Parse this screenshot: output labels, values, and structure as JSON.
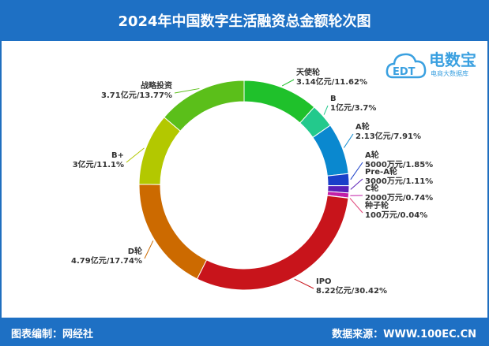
{
  "header": {
    "title": "2024年中国数字生活融资总金额轮次图"
  },
  "footer": {
    "left": "图表编制：网经社",
    "right": "数据来源：WWW.100EC.CN"
  },
  "logo": {
    "brand": "电数宝",
    "sub": "电商大数据库",
    "mark": "EDT"
  },
  "colors": {
    "header": "#1e70c4"
  },
  "chart_data": {
    "type": "pie",
    "title": "2024年中国数字生活融资总金额轮次图",
    "donut": true,
    "slices": [
      {
        "name": "天使轮",
        "amount": "3.14亿元",
        "percent": 11.62,
        "label2": "3.14亿元/11.62%",
        "color": "#1fc12b"
      },
      {
        "name": "B",
        "amount": "1亿元",
        "percent": 3.7,
        "label2": "1亿元/3.7%",
        "color": "#23c98c"
      },
      {
        "name": "A轮",
        "amount": "2.13亿元",
        "percent": 7.91,
        "label2": "2.13亿元/7.91%",
        "color": "#0a88cf"
      },
      {
        "name": "A轮",
        "amount": "5000万元",
        "percent": 1.85,
        "label2": "5000万元/1.85%",
        "color": "#1a3fc9"
      },
      {
        "name": "Pre-A轮",
        "amount": "3000万元",
        "percent": 1.11,
        "label2": "3000万元/1.11%",
        "color": "#5a1fb8"
      },
      {
        "name": "C轮",
        "amount": "2000万元",
        "percent": 0.74,
        "label2": "2000万元/0.74%",
        "color": "#c21fa8"
      },
      {
        "name": "种子轮",
        "amount": "100万元",
        "percent": 0.04,
        "label2": "100万元/0.04%",
        "color": "#e0457a"
      },
      {
        "name": "IPO",
        "amount": "8.22亿元",
        "percent": 30.42,
        "label2": "8.22亿元/30.42%",
        "color": "#c8141b"
      },
      {
        "name": "D轮",
        "amount": "4.79亿元",
        "percent": 17.74,
        "label2": "4.79亿元/17.74%",
        "color": "#cc6a00"
      },
      {
        "name": "B+",
        "amount": "3亿元",
        "percent": 11.1,
        "label2": "3亿元/11.1%",
        "color": "#b3c800"
      },
      {
        "name": "战略投资",
        "amount": "3.71亿元",
        "percent": 13.77,
        "label2": "3.71亿元/13.77%",
        "color": "#5bbf1a"
      }
    ]
  }
}
